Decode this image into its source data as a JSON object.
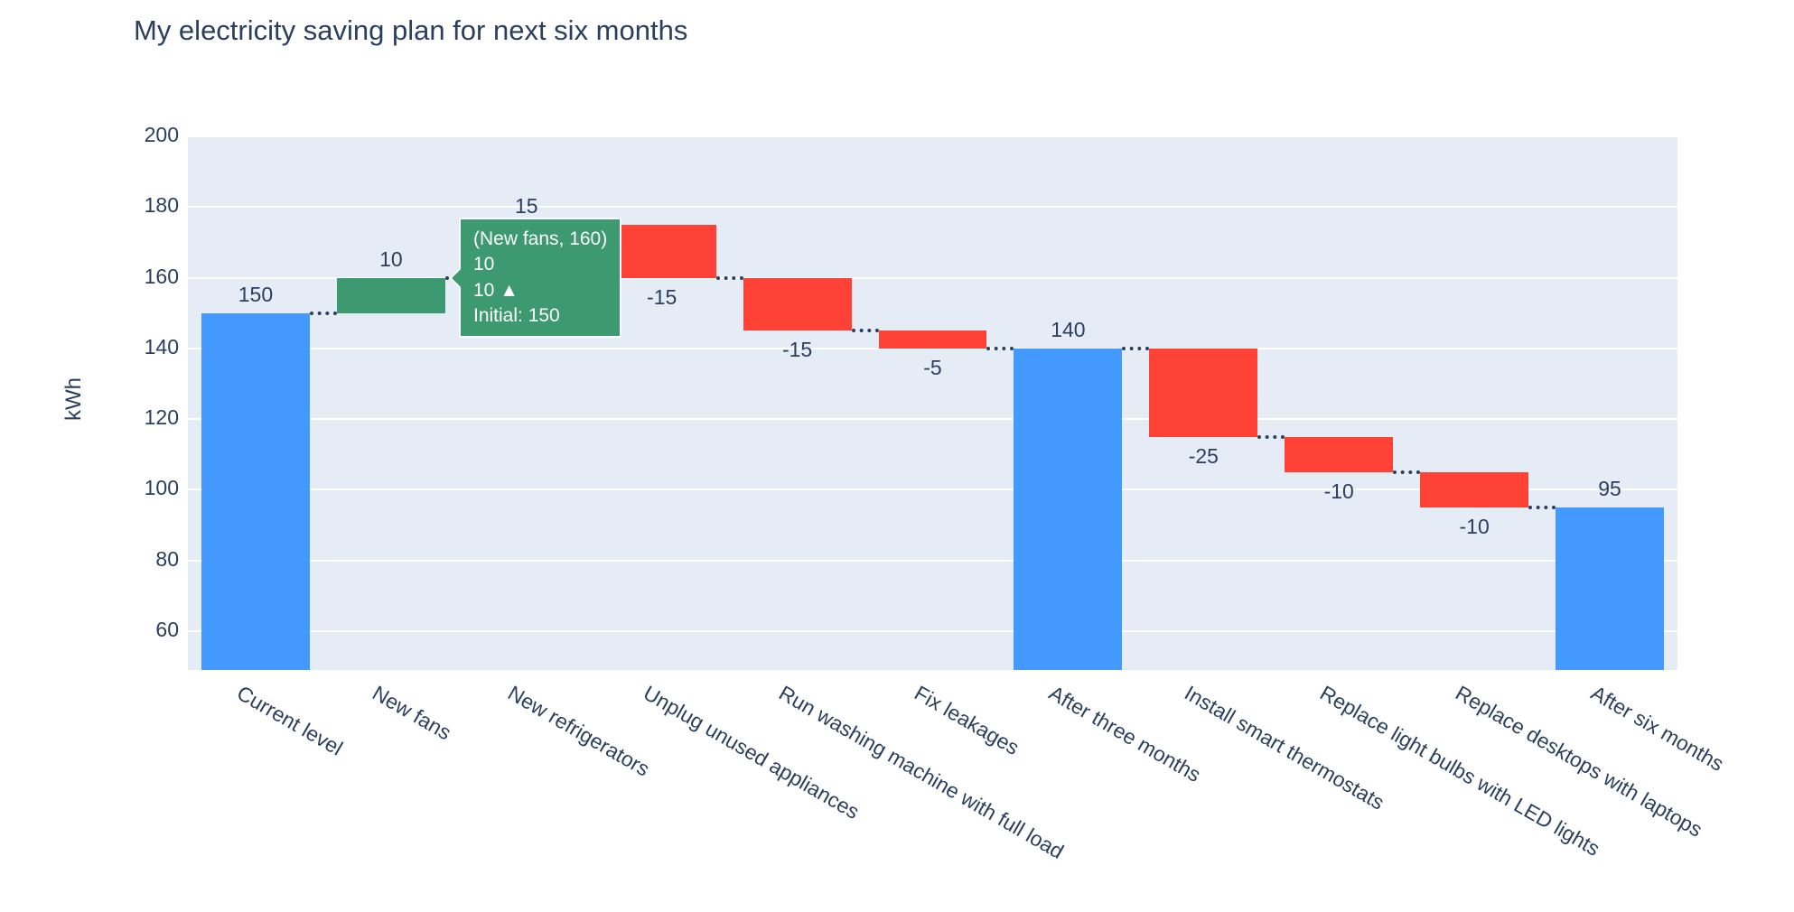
{
  "chart_data": {
    "type": "waterfall",
    "title": "My electricity saving plan for next six months",
    "ylabel": "kWh",
    "xlabel": "",
    "ylim": [
      49,
      200
    ],
    "yticks": [
      60,
      80,
      100,
      120,
      140,
      160,
      180,
      200
    ],
    "grid": true,
    "legend_position": "none",
    "categories": [
      "Current level",
      "New fans",
      "New refrigerators",
      "Unplug unused appliances",
      "Run washing machine with full load",
      "Fix leakages",
      "After three months",
      "Install smart thermostats",
      "Replace light bulbs with LED lights",
      "Replace desktops with laptops",
      "After six months"
    ],
    "measures": [
      "absolute",
      "relative",
      "relative",
      "relative",
      "relative",
      "relative",
      "total",
      "relative",
      "relative",
      "relative",
      "total"
    ],
    "values": [
      150,
      10,
      15,
      -15,
      -15,
      -5,
      140,
      -25,
      -10,
      -10,
      95
    ],
    "labels": [
      "150",
      "10",
      "15",
      "-15",
      "-15",
      "-5",
      "140",
      "-25",
      "-10",
      "-10",
      "95"
    ],
    "running_totals": [
      150,
      160,
      175,
      160,
      145,
      140,
      140,
      115,
      105,
      95,
      95
    ],
    "colors": {
      "increasing": "#3D9970",
      "decreasing": "#FF4136",
      "total": "#4499FF",
      "connector": "#2a3f5f",
      "plot_bg": "#E5ECF6",
      "grid": "#ffffff",
      "font": "#2a3f5f"
    }
  },
  "tooltip": {
    "lines": [
      "(New fans, 160)",
      "10",
      "10 ▲",
      "Initial: 150"
    ]
  }
}
